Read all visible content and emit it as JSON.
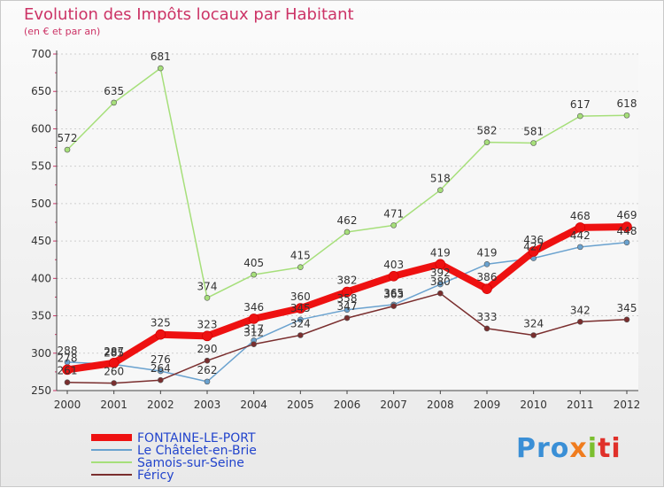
{
  "header": {
    "title": "Evolution des Impôts locaux par Habitant",
    "subtitle": "(en € et par an)"
  },
  "brand": {
    "p1": "Pro",
    "p2": "x",
    "p3": "i",
    "p4": "ti"
  },
  "chart_data": {
    "type": "line",
    "title": "Evolution des Impôts locaux par Habitant",
    "subtitle": "(en € et par an)",
    "xlabel": "",
    "ylabel": "",
    "categories": [
      "2000",
      "2001",
      "2002",
      "2003",
      "2004",
      "2005",
      "2006",
      "2007",
      "2008",
      "2009",
      "2010",
      "2011",
      "2012"
    ],
    "ylim": [
      250,
      700
    ],
    "yticks": [
      250,
      300,
      350,
      400,
      450,
      500,
      550,
      600,
      650,
      700
    ],
    "grid": "horizontal-dotted",
    "legend": "bottom-left",
    "series": [
      {
        "name": "FONTAINE-LE-PORT",
        "color": "#ee1111",
        "width": 8,
        "values": [
          278,
          287,
          325,
          323,
          346,
          360,
          382,
          403,
          419,
          386,
          436,
          468,
          469
        ]
      },
      {
        "name": "Le Châtelet-en-Brie",
        "color": "#6aa2cf",
        "width": 1.5,
        "values": [
          288,
          285,
          276,
          262,
          317,
          345,
          358,
          365,
          392,
          419,
          427,
          442,
          448
        ]
      },
      {
        "name": "Samois-sur-Seine",
        "color": "#a6df7a",
        "width": 1.5,
        "values": [
          572,
          635,
          681,
          374,
          405,
          415,
          462,
          471,
          518,
          582,
          581,
          617,
          618
        ]
      },
      {
        "name": "Féricy",
        "color": "#7a2e2e",
        "width": 1.5,
        "values": [
          261,
          260,
          264,
          290,
          312,
          324,
          347,
          363,
          380,
          333,
          324,
          342,
          345
        ]
      }
    ]
  }
}
